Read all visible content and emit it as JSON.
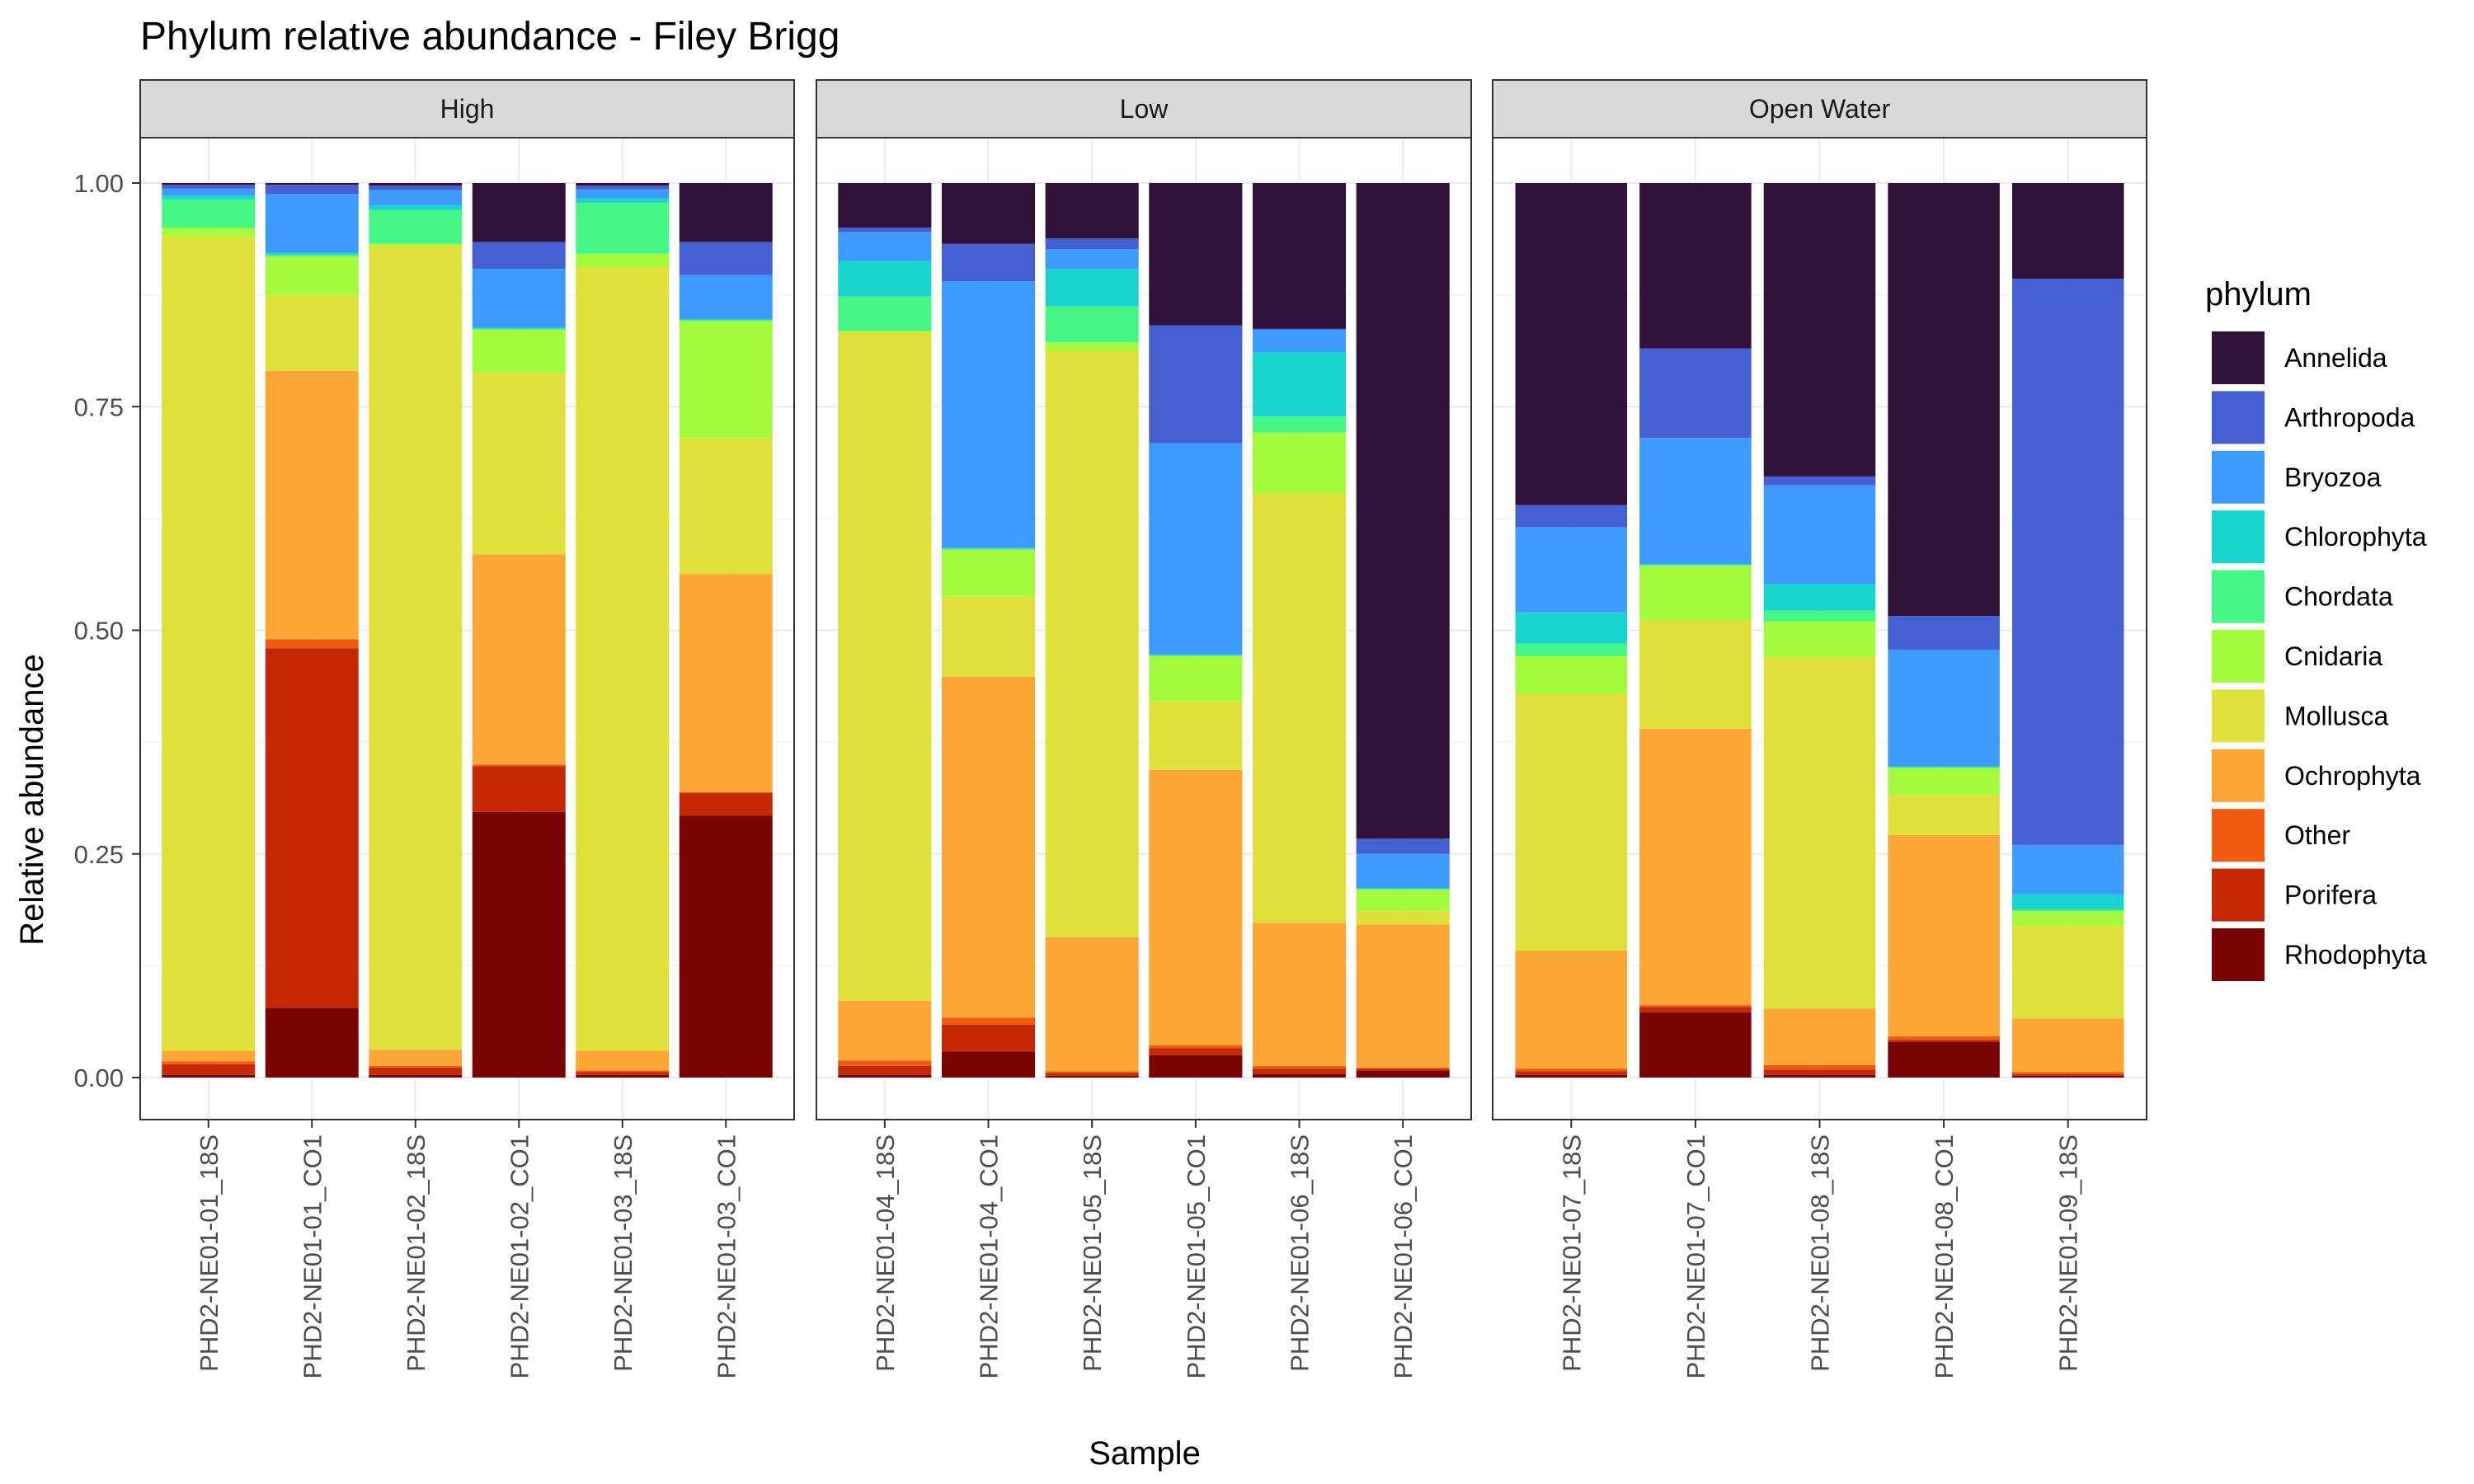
{
  "chart_data": {
    "type": "bar",
    "stacked": true,
    "title": "Phylum relative abundance - Filey Brigg",
    "xlabel": "Sample",
    "ylabel": "Relative abundance",
    "ylim": [
      0,
      1
    ],
    "yticks": [
      "0.00",
      "0.25",
      "0.50",
      "0.75",
      "1.00"
    ],
    "grid": true,
    "legend": {
      "title": "phylum",
      "position": "right"
    },
    "phyla": [
      {
        "name": "Annelida",
        "color": "#30123b"
      },
      {
        "name": "Arthropoda",
        "color": "#4560d2"
      },
      {
        "name": "Bryozoa",
        "color": "#3d9bff"
      },
      {
        "name": "Chlorophyta",
        "color": "#1ad4cf"
      },
      {
        "name": "Chordata",
        "color": "#45f684"
      },
      {
        "name": "Cnidaria",
        "color": "#a4fa3c"
      },
      {
        "name": "Mollusca",
        "color": "#e0e03a"
      },
      {
        "name": "Ochrophyta",
        "color": "#fca635"
      },
      {
        "name": "Other",
        "color": "#f05b12"
      },
      {
        "name": "Porifera",
        "color": "#c52803"
      },
      {
        "name": "Rhodophyta",
        "color": "#7a0403"
      }
    ],
    "panels": [
      {
        "label": "High",
        "samples": [
          {
            "name": "PHD2-NE01-01_18S",
            "values": {
              "Rhodophyta": 0.003,
              "Porifera": 0.012,
              "Other": 0.003,
              "Ochrophyta": 0.012,
              "Mollusca": 0.91,
              "Cnidaria": 0.01,
              "Chordata": 0.032,
              "Chlorophyta": 0.004,
              "Bryozoa": 0.008,
              "Arthropoda": 0.004,
              "Annelida": 0.002
            }
          },
          {
            "name": "PHD2-NE01-01_CO1",
            "values": {
              "Rhodophyta": 0.078,
              "Porifera": 0.402,
              "Other": 0.01,
              "Ochrophyta": 0.3,
              "Mollusca": 0.085,
              "Cnidaria": 0.043,
              "Chordata": 0.002,
              "Chlorophyta": 0.002,
              "Bryozoa": 0.066,
              "Arthropoda": 0.01,
              "Annelida": 0.002
            }
          },
          {
            "name": "PHD2-NE01-02_18S",
            "values": {
              "Rhodophyta": 0.003,
              "Porifera": 0.008,
              "Other": 0.002,
              "Ochrophyta": 0.018,
              "Mollusca": 0.899,
              "Cnidaria": 0.002,
              "Chordata": 0.038,
              "Chlorophyta": 0.005,
              "Bryozoa": 0.017,
              "Arthropoda": 0.005,
              "Annelida": 0.003
            }
          },
          {
            "name": "PHD2-NE01-02_CO1",
            "values": {
              "Rhodophyta": 0.297,
              "Porifera": 0.051,
              "Other": 0.002,
              "Ochrophyta": 0.235,
              "Mollusca": 0.203,
              "Cnidaria": 0.048,
              "Chordata": 0.001,
              "Chlorophyta": 0.001,
              "Bryozoa": 0.066,
              "Arthropoda": 0.03,
              "Annelida": 0.066
            }
          },
          {
            "name": "PHD2-NE01-03_18S",
            "values": {
              "Rhodophyta": 0.003,
              "Porifera": 0.003,
              "Other": 0.002,
              "Ochrophyta": 0.022,
              "Mollusca": 0.876,
              "Cnidaria": 0.015,
              "Chordata": 0.057,
              "Chlorophyta": 0.005,
              "Bryozoa": 0.01,
              "Arthropoda": 0.004,
              "Annelida": 0.003
            }
          },
          {
            "name": "PHD2-NE01-03_CO1",
            "values": {
              "Rhodophyta": 0.293,
              "Porifera": 0.025,
              "Other": 0.001,
              "Ochrophyta": 0.244,
              "Mollusca": 0.152,
              "Cnidaria": 0.131,
              "Chordata": 0.001,
              "Chlorophyta": 0.001,
              "Bryozoa": 0.049,
              "Arthropoda": 0.037,
              "Annelida": 0.066
            }
          }
        ]
      },
      {
        "label": "Low",
        "samples": [
          {
            "name": "PHD2-NE01-04_18S",
            "values": {
              "Rhodophyta": 0.003,
              "Porifera": 0.01,
              "Other": 0.006,
              "Ochrophyta": 0.067,
              "Mollusca": 0.747,
              "Cnidaria": 0.002,
              "Chordata": 0.038,
              "Chlorophyta": 0.04,
              "Bryozoa": 0.032,
              "Arthropoda": 0.005,
              "Annelida": 0.05
            }
          },
          {
            "name": "PHD2-NE01-04_CO1",
            "values": {
              "Rhodophyta": 0.029,
              "Porifera": 0.03,
              "Other": 0.008,
              "Ochrophyta": 0.381,
              "Mollusca": 0.09,
              "Cnidaria": 0.052,
              "Chordata": 0.001,
              "Chlorophyta": 0.001,
              "Bryozoa": 0.298,
              "Arthropoda": 0.042,
              "Annelida": 0.068
            }
          },
          {
            "name": "PHD2-NE01-05_18S",
            "values": {
              "Rhodophyta": 0.002,
              "Porifera": 0.003,
              "Other": 0.002,
              "Ochrophyta": 0.15,
              "Mollusca": 0.655,
              "Cnidaria": 0.01,
              "Chordata": 0.04,
              "Chlorophyta": 0.042,
              "Bryozoa": 0.022,
              "Arthropoda": 0.012,
              "Annelida": 0.062
            }
          },
          {
            "name": "PHD2-NE01-05_CO1",
            "values": {
              "Rhodophyta": 0.025,
              "Porifera": 0.008,
              "Other": 0.003,
              "Ochrophyta": 0.308,
              "Mollusca": 0.077,
              "Cnidaria": 0.05,
              "Chordata": 0.001,
              "Chlorophyta": 0.001,
              "Bryozoa": 0.236,
              "Arthropoda": 0.132,
              "Annelida": 0.159
            }
          },
          {
            "name": "PHD2-NE01-06_18S",
            "values": {
              "Rhodophyta": 0.004,
              "Porifera": 0.006,
              "Other": 0.003,
              "Ochrophyta": 0.16,
              "Mollusca": 0.48,
              "Cnidaria": 0.068,
              "Chordata": 0.018,
              "Chlorophyta": 0.072,
              "Bryozoa": 0.025,
              "Arthropoda": 0.001,
              "Annelida": 0.163
            }
          },
          {
            "name": "PHD2-NE01-06_CO1",
            "values": {
              "Rhodophyta": 0.008,
              "Porifera": 0.002,
              "Other": 0.001,
              "Ochrophyta": 0.16,
              "Mollusca": 0.015,
              "Cnidaria": 0.024,
              "Chordata": 0.001,
              "Chlorophyta": 0.001,
              "Bryozoa": 0.038,
              "Arthropoda": 0.017,
              "Annelida": 0.733
            }
          }
        ]
      },
      {
        "label": "Open Water",
        "samples": [
          {
            "name": "PHD2-NE01-07_18S",
            "values": {
              "Rhodophyta": 0.003,
              "Porifera": 0.004,
              "Other": 0.003,
              "Ochrophyta": 0.132,
              "Mollusca": 0.287,
              "Cnidaria": 0.042,
              "Chordata": 0.014,
              "Chlorophyta": 0.035,
              "Bryozoa": 0.095,
              "Arthropoda": 0.025,
              "Annelida": 0.36
            }
          },
          {
            "name": "PHD2-NE01-07_CO1",
            "values": {
              "Rhodophyta": 0.073,
              "Porifera": 0.006,
              "Other": 0.002,
              "Ochrophyta": 0.309,
              "Mollusca": 0.121,
              "Cnidaria": 0.061,
              "Chordata": 0.001,
              "Chlorophyta": 0.001,
              "Bryozoa": 0.141,
              "Arthropoda": 0.1,
              "Annelida": 0.185
            }
          },
          {
            "name": "PHD2-NE01-08_18S",
            "values": {
              "Rhodophyta": 0.003,
              "Porifera": 0.006,
              "Other": 0.005,
              "Ochrophyta": 0.063,
              "Mollusca": 0.393,
              "Cnidaria": 0.04,
              "Chordata": 0.012,
              "Chlorophyta": 0.03,
              "Bryozoa": 0.11,
              "Arthropoda": 0.01,
              "Annelida": 0.328
            }
          },
          {
            "name": "PHD2-NE01-08_CO1",
            "values": {
              "Rhodophyta": 0.04,
              "Porifera": 0.002,
              "Other": 0.004,
              "Ochrophyta": 0.225,
              "Mollusca": 0.045,
              "Cnidaria": 0.03,
              "Chordata": 0.001,
              "Chlorophyta": 0.001,
              "Bryozoa": 0.13,
              "Arthropoda": 0.038,
              "Annelida": 0.484
            }
          },
          {
            "name": "PHD2-NE01-09_18S",
            "values": {
              "Rhodophyta": 0.002,
              "Porifera": 0.002,
              "Other": 0.002,
              "Ochrophyta": 0.06,
              "Mollusca": 0.104,
              "Cnidaria": 0.016,
              "Chordata": 0.002,
              "Chlorophyta": 0.017,
              "Bryozoa": 0.055,
              "Arthropoda": 0.633,
              "Annelida": 0.107
            }
          }
        ]
      }
    ]
  }
}
